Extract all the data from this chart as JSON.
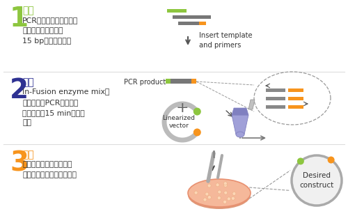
{
  "bg_color": "#ffffff",
  "divider_color": "#dddddd",
  "step1_num": "1",
  "step1_num_color": "#8dc63f",
  "step1_title": "扩增",
  "step1_title_color": "#8dc63f",
  "step1_body": "PCR扩增获得目的片段，\n其末端与载体末端有\n15 bp的同源序列。",
  "step2_num": "2",
  "step2_num_color": "#2e3192",
  "step2_title": "混合",
  "step2_title_color": "#2e3192",
  "step2_body": "In-Fusion enzyme mix，\n线性载体，PCR产物在同\n一管中进行15 min的克隆\n反应",
  "step3_num": "3",
  "step3_num_color": "#f7941d",
  "step3_title": "转化",
  "step3_title_color": "#f7941d",
  "step3_body": "克隆反应液转化感受态细\n胞，涂布选择培养基平板。",
  "insert_label": "Insert template\nand primers",
  "pcr_product_label": "PCR product",
  "linearized_label": "Linearized\nvector",
  "desired_label": "Desired\nconstruct",
  "green_color": "#8dc63f",
  "orange_color": "#f7941d",
  "dark_gray": "#555555",
  "med_gray": "#888888",
  "light_gray": "#cccccc",
  "vector_gray": "#bbbbbb",
  "tube_body": "#a0a0d8",
  "tube_dark": "#8080c0",
  "salmon_fill": "#f5b89a",
  "salmon_edge": "#e89070",
  "colony_fill": "#fcd5b5",
  "colony_edge": "#e8a878",
  "desired_bg": "#f0f0f0",
  "desired_ring": "#aaaaaa"
}
